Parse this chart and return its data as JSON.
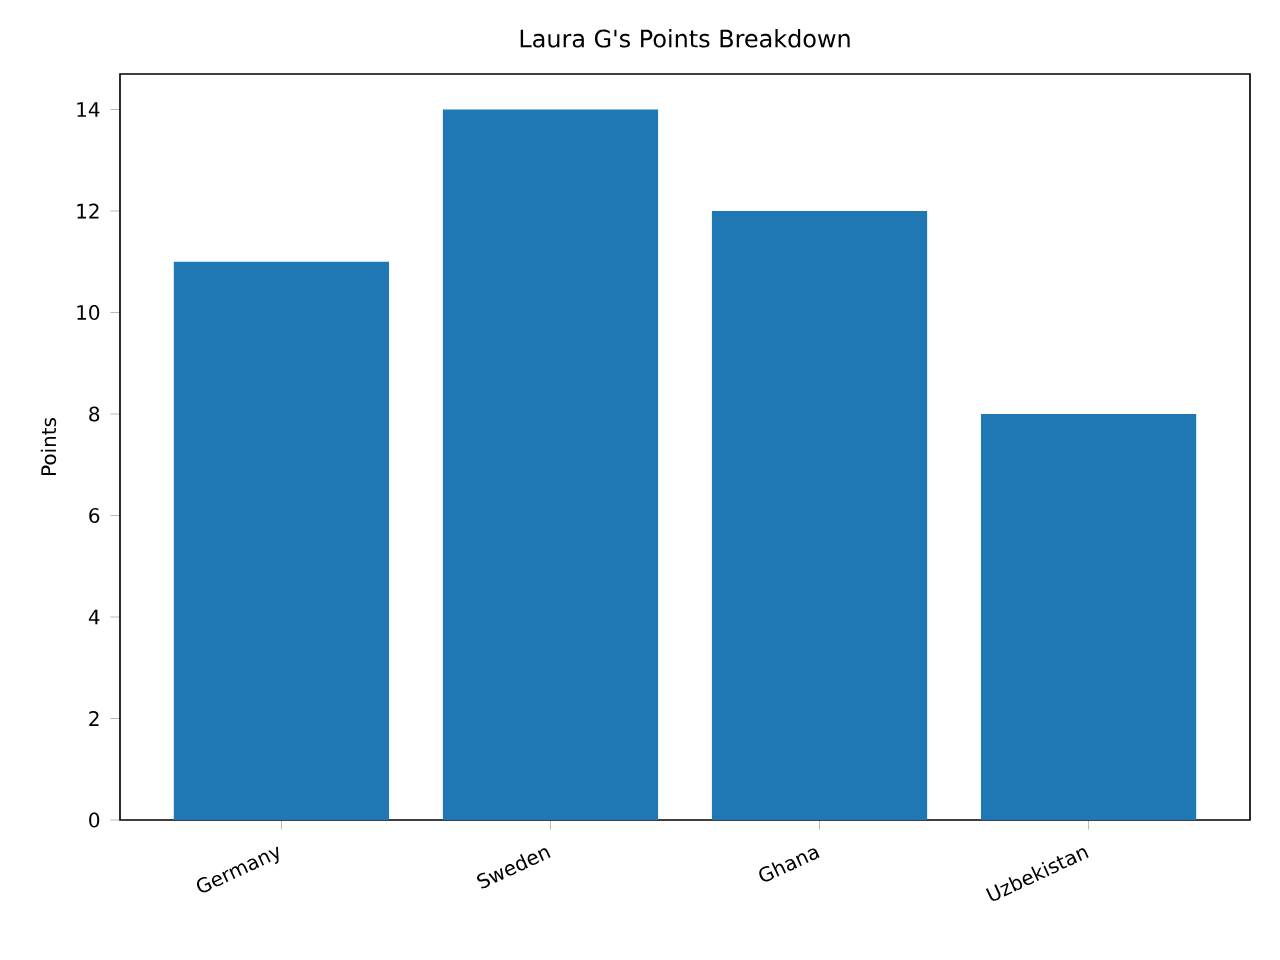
{
  "chart_data": {
    "type": "bar",
    "title": "Laura G's Points Breakdown",
    "ylabel": "Points",
    "categories": [
      "Germany",
      "Sweden",
      "Ghana",
      "Uzbekistan"
    ],
    "values": [
      11,
      14,
      12,
      8
    ],
    "color": "#1f77b4",
    "ylim": [
      0,
      14.7
    ],
    "yticks": [
      0,
      2,
      4,
      6,
      8,
      10,
      12,
      14
    ]
  }
}
